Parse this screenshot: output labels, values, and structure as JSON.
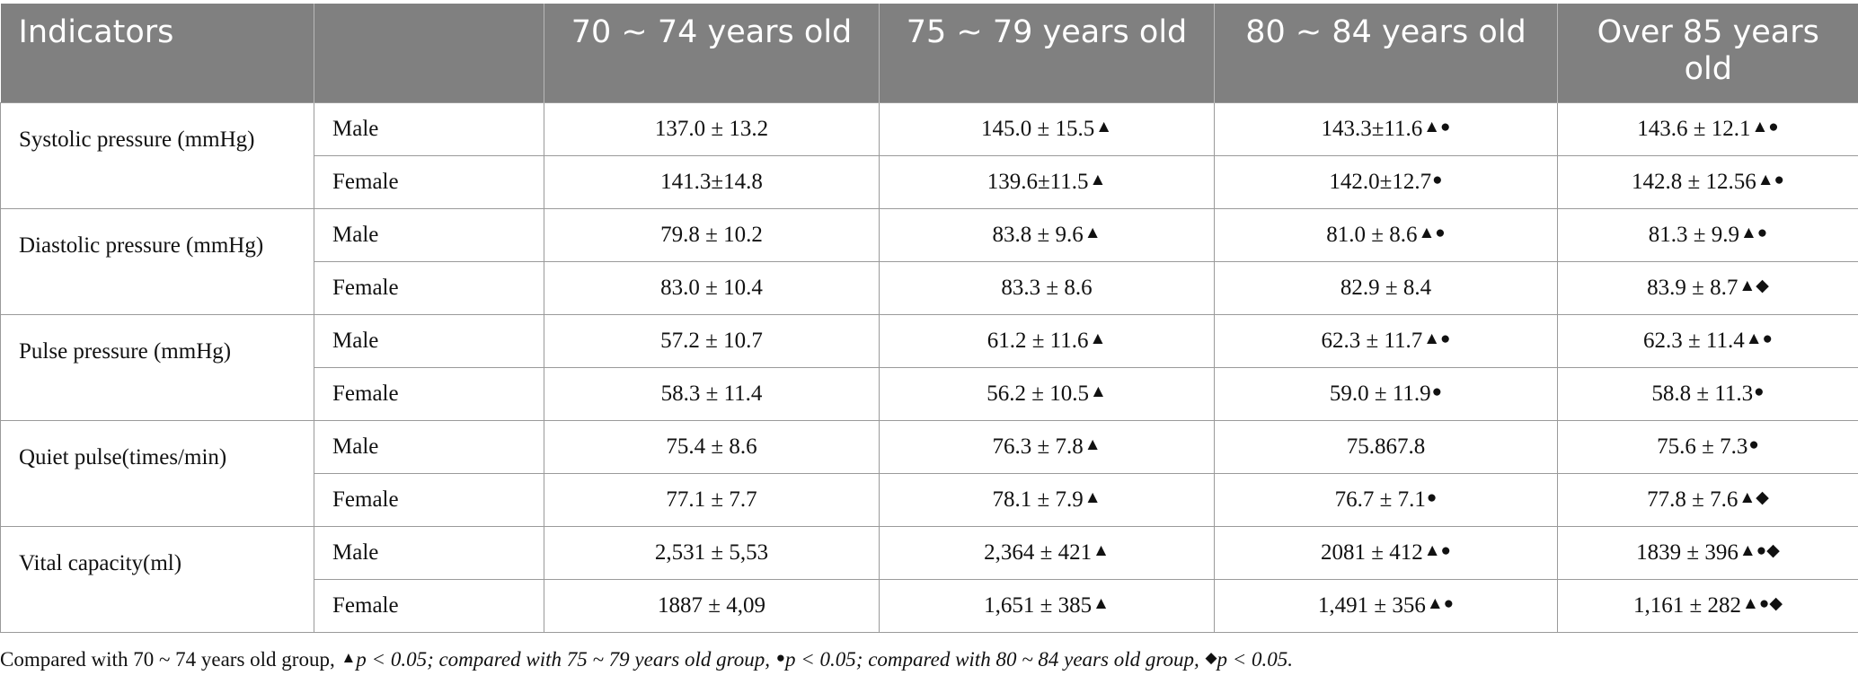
{
  "table": {
    "headers": [
      "Indicators",
      "",
      "70 ~ 74 years old",
      "75 ~ 79 years old",
      "80 ~ 84 years old",
      "Over 85 years old"
    ],
    "groups": [
      {
        "indicator": "Systolic pressure (mmHg)",
        "rows": [
          {
            "sex": "Male",
            "cells": [
              {
                "v": "137.0 ± 13.2",
                "m": ""
              },
              {
                "v": "145.0 ± 15.5",
                "m": "▲"
              },
              {
                "v": "143.3±11.6",
                "m": "▲●"
              },
              {
                "v": "143.6 ± 12.1",
                "m": "▲●"
              }
            ]
          },
          {
            "sex": "Female",
            "cells": [
              {
                "v": "141.3±14.8",
                "m": ""
              },
              {
                "v": "139.6±11.5",
                "m": "▲"
              },
              {
                "v": "142.0±12.7",
                "m": "●"
              },
              {
                "v": "142.8 ± 12.56",
                "m": "▲●"
              }
            ]
          }
        ]
      },
      {
        "indicator": "Diastolic pressure (mmHg)",
        "rows": [
          {
            "sex": "Male",
            "cells": [
              {
                "v": "79.8 ± 10.2",
                "m": ""
              },
              {
                "v": "83.8 ± 9.6",
                "m": "▲"
              },
              {
                "v": "81.0 ± 8.6",
                "m": "▲●"
              },
              {
                "v": "81.3 ± 9.9",
                "m": "▲●"
              }
            ]
          },
          {
            "sex": "Female",
            "cells": [
              {
                "v": "83.0 ± 10.4",
                "m": ""
              },
              {
                "v": "83.3 ± 8.6",
                "m": ""
              },
              {
                "v": "82.9 ± 8.4",
                "m": ""
              },
              {
                "v": "83.9 ± 8.7",
                "m": "▲◆"
              }
            ]
          }
        ]
      },
      {
        "indicator": "Pulse pressure (mmHg)",
        "rows": [
          {
            "sex": "Male",
            "cells": [
              {
                "v": "57.2 ± 10.7",
                "m": ""
              },
              {
                "v": "61.2 ± 11.6",
                "m": "▲"
              },
              {
                "v": "62.3 ± 11.7",
                "m": "▲●"
              },
              {
                "v": "62.3 ± 11.4",
                "m": "▲●"
              }
            ]
          },
          {
            "sex": "Female",
            "cells": [
              {
                "v": "58.3 ± 11.4",
                "m": ""
              },
              {
                "v": "56.2 ± 10.5",
                "m": "▲"
              },
              {
                "v": "59.0 ± 11.9",
                "m": "●"
              },
              {
                "v": "58.8 ± 11.3",
                "m": "●"
              }
            ]
          }
        ]
      },
      {
        "indicator": "Quiet pulse(times/min)",
        "rows": [
          {
            "sex": "Male",
            "cells": [
              {
                "v": "75.4 ± 8.6",
                "m": ""
              },
              {
                "v": "76.3 ± 7.8",
                "m": "▲"
              },
              {
                "v": "75.867.8",
                "m": ""
              },
              {
                "v": "75.6 ± 7.3",
                "m": "●"
              }
            ]
          },
          {
            "sex": "Female",
            "cells": [
              {
                "v": "77.1 ± 7.7",
                "m": ""
              },
              {
                "v": "78.1 ± 7.9",
                "m": "▲"
              },
              {
                "v": "76.7 ± 7.1",
                "m": "●"
              },
              {
                "v": "77.8 ± 7.6",
                "m": "▲◆"
              }
            ]
          }
        ]
      },
      {
        "indicator": "Vital capacity(ml)",
        "rows": [
          {
            "sex": "Male",
            "cells": [
              {
                "v": "2,531 ± 5,53",
                "m": ""
              },
              {
                "v": "2,364 ± 421",
                "m": "▲"
              },
              {
                "v": "2081 ± 412",
                "m": "▲●"
              },
              {
                "v": "1839 ± 396",
                "m": "▲●◆"
              }
            ]
          },
          {
            "sex": "Female",
            "cells": [
              {
                "v": "1887 ± 4,09",
                "m": ""
              },
              {
                "v": "1,651 ± 385",
                "m": "▲"
              },
              {
                "v": "1,491 ± 356",
                "m": "▲●"
              },
              {
                "v": "1,161 ± 282",
                "m": "▲●◆"
              }
            ]
          }
        ]
      }
    ]
  },
  "footnote": {
    "part1": "Compared with 70 ~ 74 years old group, ",
    "mark1": "▲",
    "part2": "p < 0.05; compared with 75 ~ 79 years old group, ",
    "mark2": "●",
    "part3": "p < 0.05; compared with 80 ~ 84 years old group, ",
    "mark3": "◆",
    "part4": "p < 0.05."
  }
}
